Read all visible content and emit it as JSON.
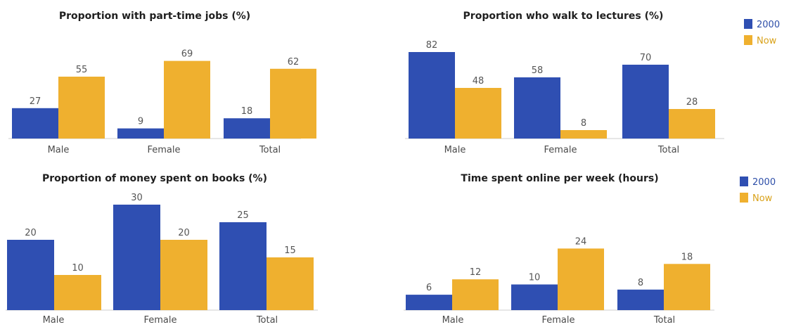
{
  "colors": {
    "2000": "#2f4fb2",
    "Now": "#efb02f"
  },
  "legend": {
    "item_2000": "2000",
    "item_now": "Now"
  },
  "chart_data": [
    {
      "type": "bar",
      "title": "Proportion with part-time jobs (%)",
      "categories": [
        "Male",
        "Female",
        "Total"
      ],
      "series": [
        {
          "name": "2000",
          "values": [
            27,
            9,
            18
          ]
        },
        {
          "name": "Now",
          "values": [
            55,
            69,
            62
          ]
        }
      ],
      "legend": "none"
    },
    {
      "type": "bar",
      "title": "Proportion who walk to lectures (%)",
      "categories": [
        "Male",
        "Female",
        "Total"
      ],
      "series": [
        {
          "name": "2000",
          "values": [
            82,
            58,
            70
          ]
        },
        {
          "name": "Now",
          "values": [
            48,
            8,
            28
          ]
        }
      ],
      "legend": "top-right"
    },
    {
      "type": "bar",
      "title": "Proportion of money spent on books (%)",
      "categories": [
        "Male",
        "Female",
        "Total"
      ],
      "series": [
        {
          "name": "2000",
          "values": [
            20,
            30,
            25
          ]
        },
        {
          "name": "Now",
          "values": [
            10,
            20,
            15
          ]
        }
      ],
      "legend": "none"
    },
    {
      "type": "bar",
      "title": "Time spent online per week (hours)",
      "categories": [
        "Male",
        "Female",
        "Total"
      ],
      "series": [
        {
          "name": "2000",
          "values": [
            6,
            10,
            8
          ]
        },
        {
          "name": "Now",
          "values": [
            12,
            24,
            18
          ]
        }
      ],
      "legend": "top-right"
    }
  ]
}
